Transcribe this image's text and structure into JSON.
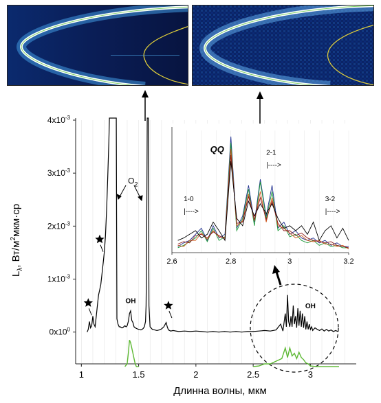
{
  "colors": {
    "main_spectrum": "#000000",
    "model_spectrum": "#5cb832",
    "inset_series": [
      "#1f2f8f",
      "#1f9a3a",
      "#d2591c",
      "#8c1a1a",
      "#000000"
    ],
    "image_bg": "#0a1b50",
    "image_arc": "#ffffff",
    "image_fit_curve": "#7fd36a",
    "image_yellow_curve": "#e3d13a"
  },
  "icons": {
    "star": "star-icon",
    "arrow": "arrow-up-icon"
  },
  "chart_data": [
    {
      "type": "line",
      "xlabel": "Длинна волны, мкм",
      "ylabel": "Lλ, Вт/м²мкм·ср",
      "xlim": [
        0.95,
        3.4
      ],
      "ylim": [
        -0.0006,
        0.004
      ],
      "x_ticks": [
        1,
        1.5,
        2,
        2.5,
        3
      ],
      "x_tick_labels": [
        "1",
        "1.5",
        "2",
        "2.5",
        "3"
      ],
      "y_ticks": [
        0,
        0.001,
        0.002,
        0.003,
        0.004
      ],
      "y_tick_labels": [
        {
          "mant": "0x10",
          "exp": "0"
        },
        {
          "mant": "1x10",
          "exp": "-3"
        },
        {
          "mant": "2x10",
          "exp": "-3"
        },
        {
          "mant": "3x10",
          "exp": "-3"
        },
        {
          "mant": "4x10",
          "exp": "-3"
        }
      ],
      "grid": "vertical-light",
      "series": [
        {
          "x": [
            1.05,
            1.06,
            1.07,
            1.08,
            1.09,
            1.1,
            1.11,
            1.12,
            1.13,
            1.14,
            1.15,
            1.16,
            1.17,
            1.18,
            1.19,
            1.2,
            1.21,
            1.22,
            1.23,
            1.24,
            1.245,
            1.25,
            1.255,
            1.26,
            1.265,
            1.27,
            1.28,
            1.29,
            1.3,
            1.305,
            1.31,
            1.32,
            1.33,
            1.34,
            1.35,
            1.36,
            1.37,
            1.38,
            1.39,
            1.4,
            1.41,
            1.42,
            1.43,
            1.44,
            1.45,
            1.46,
            1.47,
            1.48,
            1.49,
            1.5,
            1.51,
            1.52,
            1.53,
            1.54,
            1.55,
            1.56,
            1.565,
            1.57,
            1.575,
            1.58,
            1.585,
            1.59,
            1.6,
            1.62,
            1.64,
            1.66,
            1.68,
            1.7,
            1.72,
            1.74,
            1.75,
            1.76,
            1.78,
            1.8,
            1.85,
            1.9,
            1.95,
            2.0,
            2.05,
            2.1,
            2.15,
            2.2,
            2.25,
            2.3,
            2.35,
            2.4,
            2.45,
            2.5,
            2.55,
            2.6,
            2.65,
            2.7,
            2.74,
            2.76,
            2.78,
            2.79,
            2.8,
            2.81,
            2.82,
            2.83,
            2.84,
            2.85,
            2.86,
            2.87,
            2.88,
            2.89,
            2.9,
            2.91,
            2.92,
            2.93,
            2.94,
            2.95,
            2.96,
            2.97,
            2.98,
            2.99,
            3.0,
            3.01,
            3.02,
            3.04,
            3.06,
            3.08,
            3.1,
            3.12,
            3.14,
            3.16,
            3.18,
            3.2,
            3.22,
            3.24
          ],
          "y": [
            0.0,
            5e-05,
            0.0002,
            8e-05,
            0.00012,
            0.0003,
            0.00015,
            0.0001,
            0.0003,
            0.0005,
            0.0007,
            0.0008,
            0.0009,
            0.0011,
            0.0013,
            0.0015,
            0.0018,
            0.0023,
            0.0029,
            0.0036,
            0.0041,
            0.0041,
            0.0041,
            0.0041,
            0.0041,
            0.0041,
            0.0041,
            0.0041,
            0.0041,
            0.0041,
            0.00025,
            0.00015,
            0.0001,
            0.0001,
            8e-05,
            8e-05,
            0.0001,
            0.00012,
            0.0001,
            0.00012,
            0.0002,
            0.00035,
            0.0004,
            0.00022,
            0.00018,
            0.0001,
            8e-05,
            7e-05,
            6e-05,
            5e-05,
            5e-05,
            4e-05,
            5e-05,
            7e-05,
            0.0001,
            0.0002,
            0.0005,
            0.0015,
            0.0041,
            0.0041,
            0.0041,
            0.0005,
            0.0001,
            5e-05,
            4e-05,
            3e-05,
            4e-05,
            6e-05,
            0.0001,
            0.00018,
            0.0001,
            4e-05,
            2e-05,
            3e-05,
            1e-05,
            2e-05,
            1e-05,
            2e-05,
            1e-05,
            0.0,
            1e-05,
            0.0,
            1e-05,
            0.0,
            1e-05,
            0.0,
            1e-05,
            1e-05,
            2e-05,
            3e-05,
            2e-05,
            4e-05,
            0.00015,
            2e-05,
            0.00035,
            0.0001,
            0.0007,
            0.0002,
            0.0001,
            0.0003,
            0.0001,
            0.0005,
            0.00015,
            0.0003,
            8e-05,
            0.00045,
            0.00012,
            0.0004,
            0.0001,
            0.00035,
            8e-05,
            0.0003,
            5e-05,
            0.0002,
            5e-05,
            0.00015,
            5e-05,
            0.0001,
            3e-05,
            8e-05,
            5e-05,
            3e-05,
            6e-05,
            2e-05,
            5e-05,
            2e-05,
            4e-05,
            1e-05,
            3e-05,
            1e-05
          ]
        },
        {
          "x": [
            1.38,
            1.4,
            1.41,
            1.42,
            1.43,
            1.44,
            1.45,
            1.46,
            1.47,
            1.48,
            1.49,
            1.5,
            2.5,
            2.55,
            2.6,
            2.65,
            2.7,
            2.75,
            2.78,
            2.8,
            2.82,
            2.84,
            2.86,
            2.88,
            2.9,
            2.92,
            2.94,
            2.96,
            2.98,
            3.0,
            3.05,
            3.1,
            3.15,
            3.2,
            3.25
          ],
          "y": [
            -0.00065,
            -0.0006,
            -0.0004,
            -0.00015,
            -0.0002,
            -0.0003,
            -0.0004,
            -0.0005,
            -0.0006,
            -0.00065,
            -0.00065,
            -0.00065,
            -0.00065,
            -0.00064,
            -0.0006,
            -0.0006,
            -0.00055,
            -0.0005,
            -0.0003,
            -0.00048,
            -0.0003,
            -0.00045,
            -0.0004,
            -0.0005,
            -0.00038,
            -0.00048,
            -0.00052,
            -0.00058,
            -0.0006,
            -0.00064,
            -0.00065,
            -0.00065,
            -0.00065,
            -0.00065,
            -0.00065
          ]
        }
      ],
      "annotations": [
        {
          "text": "O",
          "sub": "2",
          "x": 1.45,
          "y": 0.0028
        },
        {
          "text": "OH",
          "x": 1.43,
          "y": 0.00055
        },
        {
          "text": "OH",
          "x": 3.0,
          "y": 0.00045
        }
      ],
      "star_markers": [
        {
          "x": 1.06,
          "y": 0.00055
        },
        {
          "x": 1.16,
          "y": 0.00175
        },
        {
          "x": 1.76,
          "y": 0.0005
        }
      ]
    },
    {
      "type": "line",
      "xlim": [
        2.6,
        3.2
      ],
      "ylim": [
        0,
        1
      ],
      "x_ticks": [
        2.6,
        2.8,
        3.0,
        3.2
      ],
      "x_tick_labels": [
        "2.6",
        "2.8",
        "3",
        "3.2"
      ],
      "x": [
        2.62,
        2.64,
        2.66,
        2.68,
        2.7,
        2.72,
        2.74,
        2.76,
        2.78,
        2.8,
        2.82,
        2.84,
        2.86,
        2.88,
        2.9,
        2.92,
        2.94,
        2.96,
        2.98,
        3.0,
        3.02,
        3.04,
        3.06,
        3.08,
        3.1,
        3.12,
        3.14,
        3.16,
        3.18,
        3.2
      ],
      "series": [
        {
          "values": [
            0.05,
            0.08,
            0.1,
            0.15,
            0.2,
            0.1,
            0.22,
            0.12,
            0.15,
            0.95,
            0.2,
            0.3,
            0.55,
            0.25,
            0.6,
            0.3,
            0.55,
            0.2,
            0.25,
            0.15,
            0.18,
            0.12,
            0.1,
            0.12,
            0.08,
            0.1,
            0.06,
            0.08,
            0.05,
            0.05
          ]
        },
        {
          "values": [
            0.04,
            0.06,
            0.09,
            0.12,
            0.18,
            0.09,
            0.2,
            0.1,
            0.13,
            0.9,
            0.18,
            0.28,
            0.52,
            0.22,
            0.58,
            0.28,
            0.5,
            0.18,
            0.22,
            0.13,
            0.15,
            0.1,
            0.08,
            0.1,
            0.06,
            0.08,
            0.05,
            0.06,
            0.04,
            0.04
          ]
        },
        {
          "values": [
            0.06,
            0.05,
            0.1,
            0.1,
            0.16,
            0.11,
            0.18,
            0.13,
            0.12,
            0.85,
            0.22,
            0.26,
            0.48,
            0.26,
            0.5,
            0.25,
            0.45,
            0.22,
            0.2,
            0.16,
            0.12,
            0.14,
            0.1,
            0.09,
            0.1,
            0.07,
            0.07,
            0.05,
            0.06,
            0.03
          ]
        },
        {
          "values": [
            0.07,
            0.09,
            0.08,
            0.14,
            0.15,
            0.12,
            0.17,
            0.14,
            0.11,
            0.8,
            0.24,
            0.25,
            0.46,
            0.27,
            0.45,
            0.27,
            0.42,
            0.24,
            0.18,
            0.18,
            0.14,
            0.16,
            0.12,
            0.1,
            0.09,
            0.08,
            0.09,
            0.06,
            0.05,
            0.04
          ]
        },
        {
          "values": [
            0.1,
            0.12,
            0.15,
            0.18,
            0.12,
            0.15,
            0.25,
            0.18,
            0.1,
            0.75,
            0.28,
            0.22,
            0.42,
            0.3,
            0.4,
            0.32,
            0.4,
            0.28,
            0.2,
            0.22,
            0.18,
            0.22,
            0.15,
            0.25,
            0.1,
            0.18,
            0.22,
            0.12,
            0.2,
            0.1
          ]
        }
      ],
      "annotations": [
        {
          "text": "QQ",
          "x": 2.73,
          "y": 0.82
        },
        {
          "text": "1-0",
          "x": 2.64,
          "y": 0.42
        },
        {
          "text": "|---->",
          "x": 2.64,
          "y": 0.32
        },
        {
          "text": "2-1",
          "x": 2.92,
          "y": 0.8
        },
        {
          "text": "|---->",
          "x": 2.92,
          "y": 0.7
        },
        {
          "text": "3-2",
          "x": 3.12,
          "y": 0.42
        },
        {
          "text": "|---->",
          "x": 3.12,
          "y": 0.32
        }
      ]
    }
  ]
}
